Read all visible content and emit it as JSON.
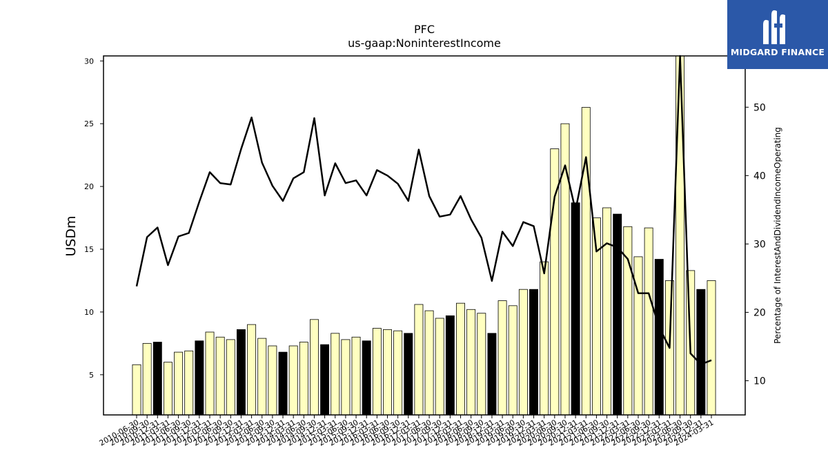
{
  "chart_data": {
    "type": "bar",
    "title": "PFC",
    "subtitle": "us-gaap:NoninterestIncome",
    "ylabel": "USDm",
    "y2label": "Percentage of InterestAndDividendIncomeOperating",
    "ylim": [
      1.8,
      30.4
    ],
    "y2lim": [
      5,
      57.5
    ],
    "yticks": [
      5,
      10,
      15,
      20,
      25,
      30
    ],
    "y2ticks": [
      10,
      20,
      30,
      40,
      50
    ],
    "categories": [
      "2010-06-30",
      "2010-09-30",
      "2010-12-31",
      "2011-03-31",
      "2011-06-30",
      "2011-09-30",
      "2011-12-31",
      "2012-03-31",
      "2012-06-30",
      "2012-09-30",
      "2012-12-31",
      "2013-03-31",
      "2013-06-30",
      "2013-09-30",
      "2013-12-31",
      "2014-03-31",
      "2014-06-30",
      "2014-09-30",
      "2014-12-31",
      "2015-03-31",
      "2015-06-30",
      "2015-09-30",
      "2015-12-31",
      "2016-03-31",
      "2016-06-30",
      "2016-09-30",
      "2016-12-31",
      "2017-03-31",
      "2017-06-30",
      "2017-09-30",
      "2017-12-31",
      "2018-03-31",
      "2018-06-30",
      "2018-09-30",
      "2018-12-31",
      "2019-03-31",
      "2019-06-30",
      "2019-09-30",
      "2019-12-31",
      "2020-03-31",
      "2020-06-30",
      "2020-09-30",
      "2020-12-31",
      "2021-03-31",
      "2021-06-30",
      "2021-09-30",
      "2021-12-31",
      "2022-03-31",
      "2022-06-30",
      "2022-09-30",
      "2022-12-31",
      "2023-03-31",
      "2023-06-30",
      "2023-09-30",
      "2023-12-31",
      "2024-03-31"
    ],
    "series": [
      {
        "type": "bar",
        "values": [
          5.8,
          7.5,
          7.6,
          6.0,
          6.8,
          6.9,
          7.7,
          8.4,
          8.0,
          7.8,
          8.6,
          9.0,
          7.9,
          7.3,
          6.8,
          7.3,
          7.6,
          9.4,
          7.4,
          8.3,
          7.8,
          8.0,
          7.7,
          8.7,
          8.6,
          8.5,
          8.3,
          10.6,
          10.1,
          9.5,
          9.7,
          10.7,
          10.2,
          9.9,
          8.3,
          10.9,
          10.5,
          11.8,
          11.8,
          14.0,
          23.0,
          25.0,
          18.7,
          26.3,
          17.5,
          18.3,
          17.8,
          16.8,
          14.4,
          16.7,
          14.2,
          12.5,
          30.4,
          13.3,
          11.8,
          12.5
        ],
        "highlight": [
          false,
          false,
          true,
          false,
          false,
          false,
          true,
          false,
          false,
          false,
          true,
          false,
          false,
          false,
          true,
          false,
          false,
          false,
          true,
          false,
          false,
          false,
          true,
          false,
          false,
          false,
          true,
          false,
          false,
          false,
          true,
          false,
          false,
          false,
          true,
          false,
          false,
          false,
          true,
          false,
          false,
          false,
          true,
          false,
          false,
          false,
          true,
          false,
          false,
          false,
          true,
          false,
          false,
          false,
          true,
          false
        ]
      },
      {
        "type": "line",
        "axis": "right",
        "values": [
          23.8,
          31.0,
          32.4,
          26.9,
          31.1,
          31.6,
          36.2,
          40.5,
          38.9,
          38.7,
          43.9,
          48.5,
          41.9,
          38.5,
          36.3,
          39.6,
          40.5,
          48.4,
          37.1,
          41.8,
          38.9,
          39.3,
          37.1,
          40.8,
          40.0,
          38.8,
          36.3,
          43.8,
          37.0,
          34.0,
          34.3,
          37.0,
          33.6,
          30.9,
          24.6,
          31.8,
          29.7,
          33.2,
          32.6,
          25.7,
          36.9,
          41.5,
          34.9,
          42.7,
          28.9,
          30.1,
          29.5,
          27.8,
          22.8,
          22.8,
          17.8,
          14.8,
          57.5,
          14.0,
          12.4,
          13.0
        ]
      }
    ]
  },
  "logo": {
    "text": "MIDGARD FINANCE",
    "color": "#2b58a8"
  }
}
